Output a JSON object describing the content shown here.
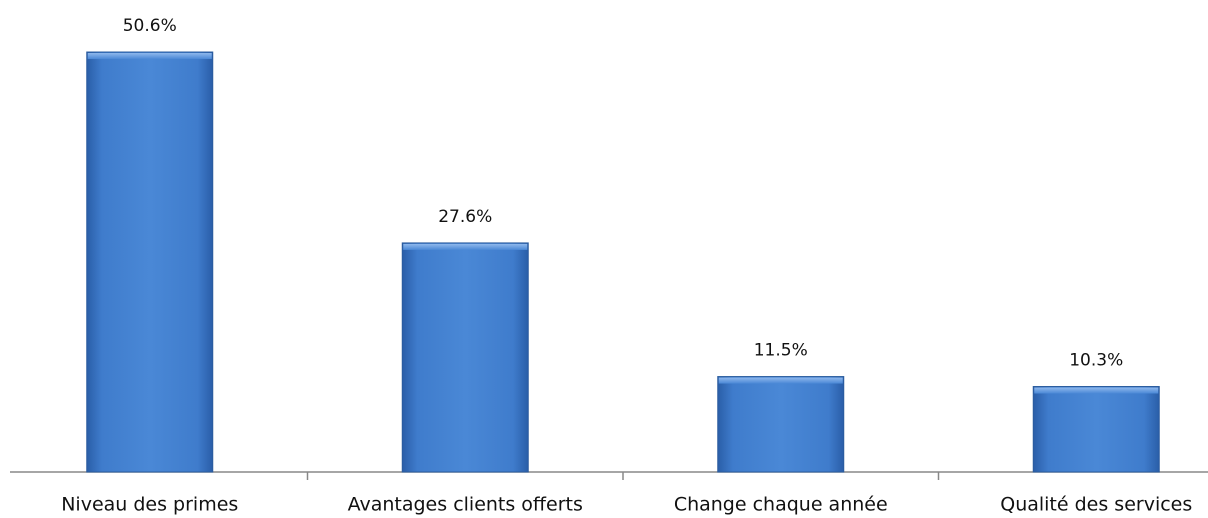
{
  "chart_data": {
    "type": "bar",
    "categories": [
      "Niveau des primes",
      "Avantages clients offerts",
      "Change chaque année",
      "Qualité des services"
    ],
    "values": [
      50.6,
      27.6,
      11.5,
      10.3
    ],
    "value_labels": [
      "50.6%",
      "27.6%",
      "11.5%",
      "10.3%"
    ],
    "color": "#3f7ccc"
  }
}
